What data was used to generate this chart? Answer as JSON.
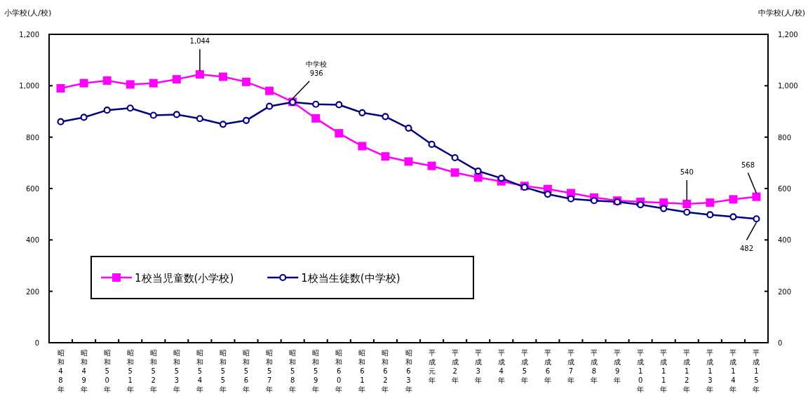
{
  "chart_data": {
    "type": "line",
    "ylabel": "小学校(人/校)",
    "y2label": "中学校(人/校)",
    "categories": [
      "昭和48年",
      "昭和49年",
      "昭和50年",
      "昭和51年",
      "昭和52年",
      "昭和53年",
      "昭和54年",
      "昭和55年",
      "昭和56年",
      "昭和57年",
      "昭和58年",
      "昭和59年",
      "昭和60年",
      "昭和61年",
      "昭和62年",
      "昭和63年",
      "平成元年",
      "平成2年",
      "平成3年",
      "平成4年",
      "平成5年",
      "平成6年",
      "平成7年",
      "平成8年",
      "平成9年",
      "平成10年",
      "平成11年",
      "平成12年",
      "平成13年",
      "平成14年",
      "平成15年"
    ],
    "series": [
      {
        "name": "1校当児童数(小学校)",
        "color": "#ff00ff",
        "marker": "square",
        "values": [
          990,
          1010,
          1020,
          1005,
          1010,
          1025,
          1044,
          1035,
          1015,
          980,
          937,
          873,
          815,
          765,
          725,
          705,
          688,
          662,
          643,
          628,
          610,
          598,
          582,
          565,
          553,
          548,
          545,
          540,
          545,
          558,
          568
        ]
      },
      {
        "name": "1校当生徒数(中学校)",
        "color": "#000080",
        "marker": "circle",
        "values": [
          860,
          877,
          905,
          913,
          885,
          888,
          872,
          850,
          865,
          920,
          936,
          928,
          926,
          895,
          880,
          835,
          772,
          720,
          668,
          640,
          605,
          578,
          560,
          553,
          548,
          537,
          522,
          508,
          498,
          490,
          482
        ]
      }
    ],
    "ylim": [
      0,
      1200
    ],
    "yticks": [
      0,
      200,
      400,
      600,
      800,
      {
        "value": 1000,
        "label": "1,000"
      },
      {
        "value": 1200,
        "label": "1,200"
      }
    ],
    "y2lim": [
      0,
      1200
    ],
    "y2ticks": [
      0,
      200,
      400,
      600,
      800,
      {
        "value": 1000,
        "label": "1,000"
      },
      {
        "value": 1200,
        "label": "1,200"
      }
    ],
    "annotations": [
      {
        "text": "1,044",
        "x": "昭和54年",
        "y": 1044
      },
      {
        "text": "中学校\n936",
        "x": "昭和58年",
        "y": 936
      },
      {
        "text": "540",
        "x": "平成12年",
        "y": 540
      },
      {
        "text": "568",
        "x": "平成15年",
        "y": 568
      },
      {
        "text": "482",
        "x": "平成15年",
        "y": 482
      }
    ],
    "legend": "bottom left",
    "grid": false
  }
}
